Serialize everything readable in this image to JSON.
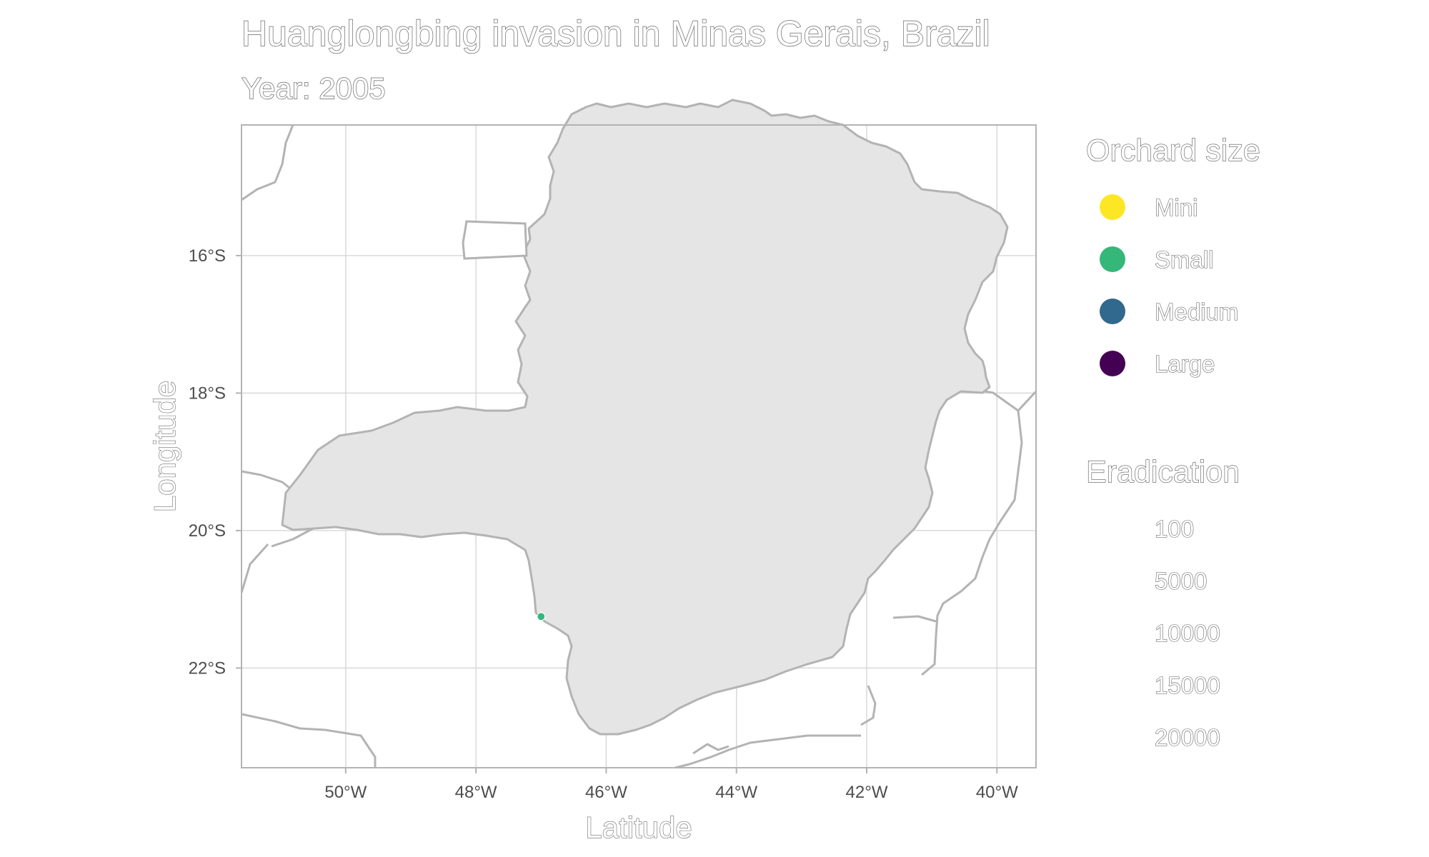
{
  "title": "Huanglongbing invasion in Minas Gerais, Brazil",
  "subtitle": "Year: 2005",
  "colors": {
    "background": "#ffffff",
    "state_fill": "#e5e5e5",
    "border": "#b3b3b3",
    "grid": "#d9d9d9",
    "mini": "#fde725",
    "small": "#35b779",
    "medium": "#31688e",
    "large": "#440154"
  },
  "chart_data": {
    "type": "scatter",
    "xlabel": "Latitude",
    "ylabel": "Longitude",
    "xlim": [
      -51.6,
      -39.4
    ],
    "ylim": [
      -23.45,
      -14.1
    ],
    "x_ticks": [
      {
        "value": -50,
        "label": "50°W"
      },
      {
        "value": -48,
        "label": "48°W"
      },
      {
        "value": -46,
        "label": "46°W"
      },
      {
        "value": -44,
        "label": "44°W"
      },
      {
        "value": -42,
        "label": "42°W"
      },
      {
        "value": -40,
        "label": "40°W"
      }
    ],
    "y_ticks": [
      {
        "value": -16,
        "label": "16°S"
      },
      {
        "value": -18,
        "label": "18°S"
      },
      {
        "value": -20,
        "label": "20°S"
      },
      {
        "value": -22,
        "label": "22°S"
      }
    ],
    "points": [
      {
        "lon": -47.0,
        "lat": -21.25,
        "size": "Small"
      }
    ],
    "legend_size": {
      "title": "Orchard size",
      "entries": [
        {
          "label": "Mini",
          "color": "#fde725"
        },
        {
          "label": "Small",
          "color": "#35b779"
        },
        {
          "label": "Medium",
          "color": "#31688e"
        },
        {
          "label": "Large",
          "color": "#440154"
        }
      ]
    },
    "legend_eradication": {
      "title": "Eradication",
      "entries": [
        "100",
        "5000",
        "10000",
        "15000",
        "20000"
      ]
    }
  }
}
